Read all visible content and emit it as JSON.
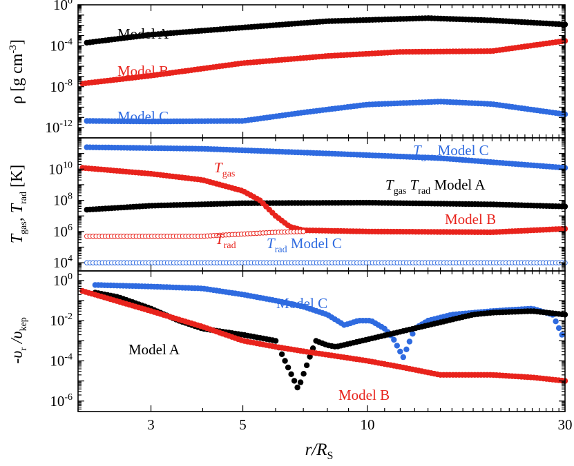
{
  "chart_data": {
    "type": "scatter",
    "x_axis": {
      "label": "r/R",
      "label_sub": "S",
      "scale": "log",
      "range": [
        2,
        30
      ],
      "tick_labels": [
        3,
        5,
        10,
        30
      ]
    },
    "colors": {
      "A": "#000000",
      "B": "#e8231c",
      "C": "#2f6be0"
    },
    "panels": [
      {
        "id": "density",
        "ylabel": "ρ [g cm",
        "ylabel_exp": "-3",
        "ylabel_tail": "]",
        "ylim": [
          1e-13,
          1
        ],
        "y_scale": "log",
        "ticks": [
          {
            "base": "10",
            "exp": "0",
            "value": 1
          },
          {
            "base": "10",
            "exp": "-4",
            "value": 0.0001
          },
          {
            "base": "10",
            "exp": "-8",
            "value": 1e-08
          },
          {
            "base": "10",
            "exp": "-12",
            "value": 1e-12
          }
        ],
        "series": [
          {
            "name": "Model A",
            "model": "A",
            "marker": "filled",
            "line": "solid",
            "points": [
              [
                2.1,
                0.0002
              ],
              [
                3,
                0.0012
              ],
              [
                5,
                0.006
              ],
              [
                8,
                0.025
              ],
              [
                14,
                0.05
              ],
              [
                20,
                0.03
              ],
              [
                30,
                0.012
              ]
            ]
          },
          {
            "name": "Model B",
            "model": "B",
            "marker": "filled",
            "line": "none",
            "points": [
              [
                2.05,
                2e-08
              ],
              [
                3,
                1.2e-07
              ],
              [
                5,
                2e-06
              ],
              [
                8,
                1e-05
              ],
              [
                12,
                2.5e-05
              ],
              [
                20,
                3e-05
              ],
              [
                30,
                0.0003
              ]
            ]
          },
          {
            "name": "Model C",
            "model": "C",
            "marker": "filled",
            "line": "solid",
            "points": [
              [
                2.1,
                4.5e-12
              ],
              [
                3,
                4e-12
              ],
              [
                5,
                4.5e-12
              ],
              [
                7,
                3e-11
              ],
              [
                10,
                1.8e-10
              ],
              [
                15,
                3.5e-10
              ],
              [
                20,
                2e-10
              ],
              [
                30,
                2e-11
              ]
            ]
          }
        ],
        "annotations": [
          {
            "text": "Model A",
            "model": "A"
          },
          {
            "text": "Model B",
            "model": "B"
          },
          {
            "text": "Model C",
            "model": "C"
          }
        ]
      },
      {
        "id": "temperature",
        "ylabel": "T",
        "ylabel_sub1": "gas",
        "ylabel_mid": ", T",
        "ylabel_sub2": "rad",
        "ylabel_tail": " [K]",
        "ylim": [
          3000.0,
          1000000000000.0
        ],
        "y_scale": "log",
        "ticks": [
          {
            "base": "10",
            "exp": "10",
            "value": 10000000000.0
          },
          {
            "base": "10",
            "exp": "8",
            "value": 100000000.0
          },
          {
            "base": "10",
            "exp": "6",
            "value": 1000000.0
          },
          {
            "base": "10",
            "exp": "4",
            "value": 10000.0
          }
        ],
        "series": [
          {
            "name": "T_gas Model C",
            "model": "C",
            "marker": "filled",
            "line": "solid",
            "points": [
              [
                2.1,
                250000000000.0
              ],
              [
                4,
                200000000000.0
              ],
              [
                8,
                100000000000.0
              ],
              [
                15,
                50000000000.0
              ],
              [
                30,
                12000000000.0
              ]
            ]
          },
          {
            "name": "T_gas Model A",
            "model": "A",
            "marker": "filled",
            "line": "solid",
            "points": [
              [
                2.1,
                25000000.0
              ],
              [
                3,
                45000000.0
              ],
              [
                5,
                65000000.0
              ],
              [
                10,
                70000000.0
              ],
              [
                20,
                55000000.0
              ],
              [
                30,
                40000000.0
              ]
            ]
          },
          {
            "name": "T_gas Model B",
            "model": "B",
            "marker": "filled",
            "line": "none",
            "points": [
              [
                2.05,
                12000000000.0
              ],
              [
                3,
                5000000000.0
              ],
              [
                4,
                2000000000.0
              ],
              [
                5,
                400000000.0
              ],
              [
                5.5,
                100000000.0
              ],
              [
                6,
                10000000.0
              ],
              [
                6.5,
                2000000.0
              ],
              [
                7,
                1200000.0
              ],
              [
                10,
                1000000.0
              ],
              [
                20,
                900000.0
              ],
              [
                30,
                1500000.0
              ]
            ]
          },
          {
            "name": "T_rad Model B",
            "model": "B",
            "marker": "open",
            "line": "solid",
            "points": [
              [
                2.1,
                500000.0
              ],
              [
                4,
                500000.0
              ],
              [
                6,
                900000.0
              ],
              [
                7,
                1000000.0
              ]
            ]
          },
          {
            "name": "T_rad Model C",
            "model": "C",
            "marker": "open",
            "line": "dotted",
            "points": [
              [
                2.1,
                10000.0
              ],
              [
                10,
                10000.0
              ],
              [
                30,
                10000.0
              ]
            ]
          }
        ],
        "annotations": [
          {
            "text": "T",
            "sub": "gas",
            "model": "C",
            "suffix": "Model C"
          },
          {
            "text": "T",
            "sub": "gas",
            "model": "B"
          },
          {
            "text": "T",
            "sub": "gas",
            "model": "A",
            "extra": "T",
            "extra_sub": "rad",
            "suffix": "Model A"
          },
          {
            "text": "Model B",
            "model": "B"
          },
          {
            "text": "T",
            "sub": "rad",
            "model": "B"
          },
          {
            "text": "T",
            "sub": "rad",
            "model": "C",
            "suffix": "Model C"
          }
        ]
      },
      {
        "id": "velocity",
        "ylabel": "-υ",
        "ylabel_sub1": "r",
        "ylabel_mid": " /υ",
        "ylabel_sub2": "kep",
        "ylim": [
          3e-07,
          3
        ],
        "y_scale": "log",
        "ticks": [
          {
            "base": "10",
            "exp": "0",
            "value": 1
          },
          {
            "base": "10",
            "exp": "-2",
            "value": 0.01
          },
          {
            "base": "10",
            "exp": "-4",
            "value": 0.0001
          },
          {
            "base": "10",
            "exp": "-6",
            "value": 1e-06
          }
        ],
        "series": [
          {
            "name": "Model C",
            "model": "C",
            "marker": "filled",
            "line": "none",
            "points": [
              [
                2.2,
                0.6
              ],
              [
                3,
                0.5
              ],
              [
                4,
                0.4
              ],
              [
                5,
                0.2
              ],
              [
                6,
                0.1
              ],
              [
                7,
                0.05
              ],
              [
                8,
                0.02
              ],
              [
                8.8,
                0.006
              ],
              [
                9.5,
                0.01
              ],
              [
                10.2,
                0.01
              ],
              [
                11,
                0.004
              ],
              [
                11.5,
                0.0015
              ],
              [
                12.2,
                0.00015
              ],
              [
                13,
                0.004
              ],
              [
                14,
                0.01
              ],
              [
                16,
                0.02
              ],
              [
                20,
                0.03
              ],
              [
                25,
                0.04
              ],
              [
                28,
                0.02
              ],
              [
                29.5,
                0.002
              ]
            ]
          },
          {
            "name": "Model A",
            "model": "A",
            "marker": "filled",
            "line": "none",
            "points": [
              [
                2.2,
                0.25
              ],
              [
                2.5,
                0.15
              ],
              [
                3,
                0.04
              ],
              [
                3.5,
                0.01
              ],
              [
                4,
                0.004
              ],
              [
                5,
                0.002
              ],
              [
                6,
                0.001
              ],
              [
                6.8,
                4e-06
              ],
              [
                7.5,
                0.001
              ],
              [
                8,
                0.0006
              ],
              [
                8.4,
                0.0005
              ],
              [
                18,
                0.02
              ],
              [
                20,
                0.025
              ],
              [
                25,
                0.03
              ],
              [
                30,
                0.02
              ]
            ]
          },
          {
            "name": "Model B",
            "model": "B",
            "marker": "filled",
            "line": "none",
            "points": [
              [
                2.05,
                0.3
              ],
              [
                3,
                0.03
              ],
              [
                4,
                0.005
              ],
              [
                5,
                0.001
              ],
              [
                6,
                0.0005
              ],
              [
                7,
                0.0003
              ],
              [
                8,
                0.0002
              ],
              [
                10,
                0.0001
              ],
              [
                12,
                5e-05
              ],
              [
                15,
                2e-05
              ],
              [
                20,
                2e-05
              ],
              [
                25,
                1.5e-05
              ],
              [
                30,
                1e-05
              ]
            ]
          }
        ],
        "annotations": [
          {
            "text": "Model C",
            "model": "C"
          },
          {
            "text": "Model A",
            "model": "A"
          },
          {
            "text": "Model B",
            "model": "B"
          }
        ]
      }
    ]
  }
}
